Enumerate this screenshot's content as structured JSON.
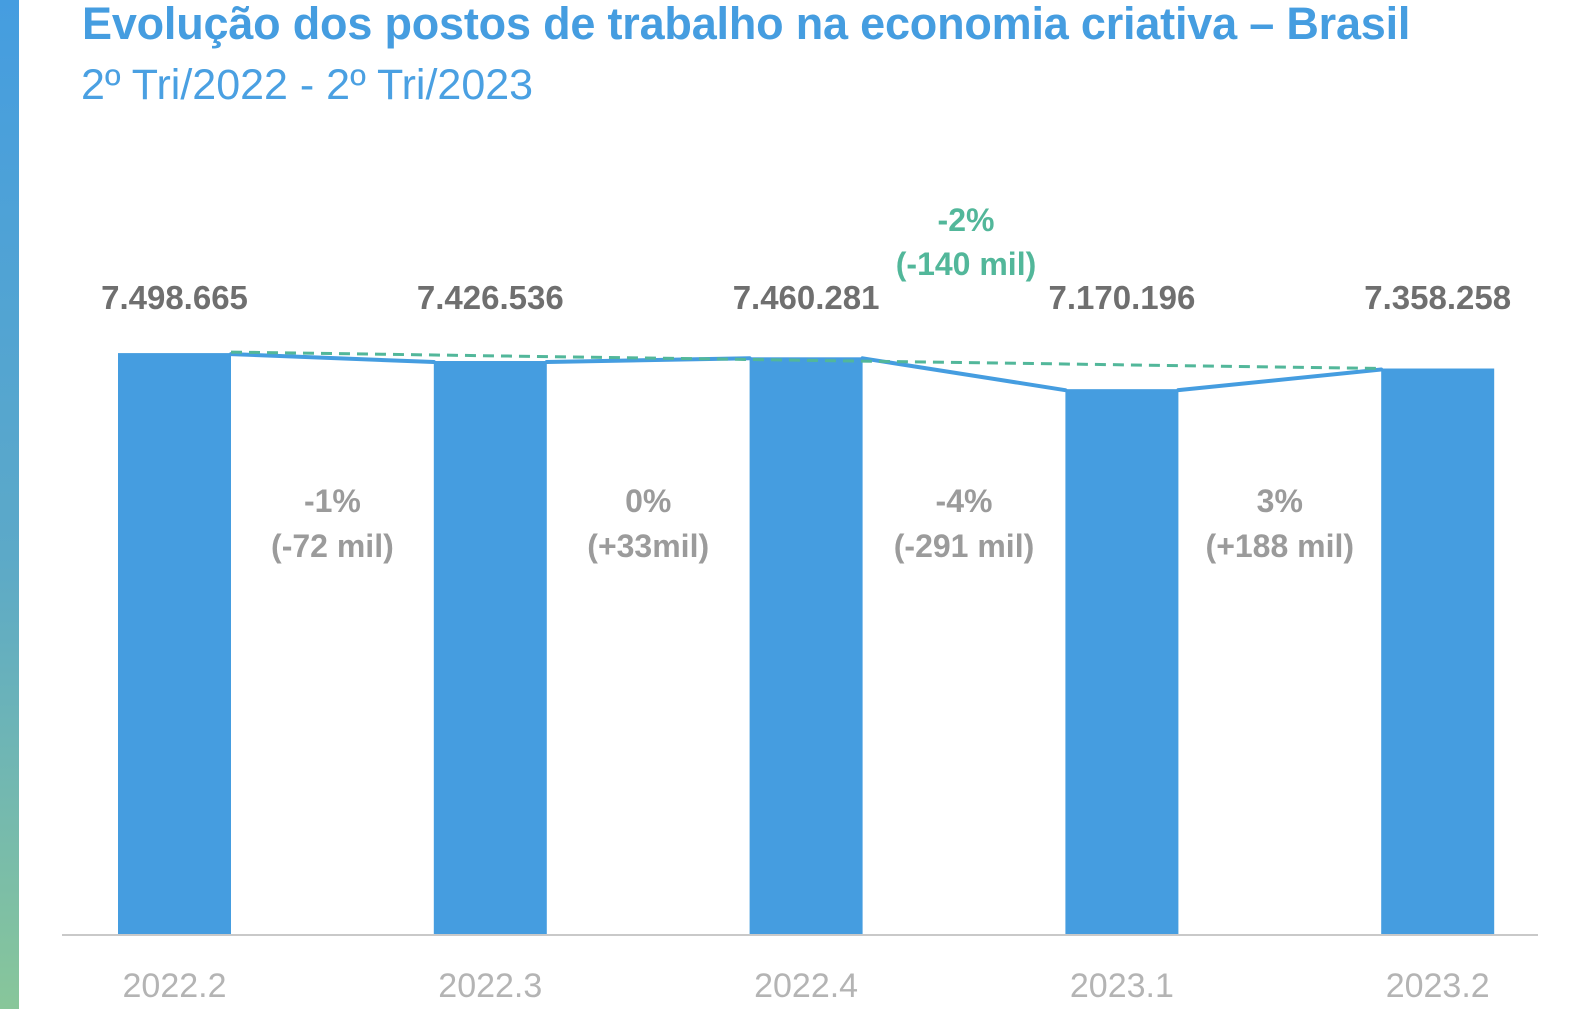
{
  "colors": {
    "title": "#459DE0",
    "bar": "#459DE0",
    "line": "#459DE0",
    "total_change": "#52B79A",
    "value_label": "#6F6F6F",
    "change_label": "#9B9B9B",
    "tick_label": "#B4B4B4",
    "axis_line": "#C9C9C9",
    "accent_top": "#459DE0",
    "accent_bottom": "#88C69A"
  },
  "chart_data": {
    "type": "bar",
    "title": "Evolução dos postos de trabalho na economia criativa – Brasil",
    "subtitle": "2º Tri/2022 - 2º Tri/2023",
    "xlabel": "",
    "ylabel": "",
    "categories": [
      "2022.2",
      "2022.3",
      "2022.4",
      "2023.1",
      "2023.2"
    ],
    "values": [
      7498665,
      7426536,
      7460281,
      7170196,
      7358258
    ],
    "value_labels": [
      "7.498.665",
      "7.426.536",
      "7.460.281",
      "7.170.196",
      "7.358.258"
    ],
    "ylim": [
      2200000,
      7800000
    ],
    "grid": false,
    "period_changes": [
      {
        "pct": "-1%",
        "abs": "(-72 mil)"
      },
      {
        "pct": "0%",
        "abs": "(+33mil)"
      },
      {
        "pct": "-4%",
        "abs": "(-291 mil)"
      },
      {
        "pct": "3%",
        "abs": "(+188 mil)"
      }
    ],
    "total_change": {
      "pct": "-2%",
      "abs": "(-140 mil)"
    }
  }
}
